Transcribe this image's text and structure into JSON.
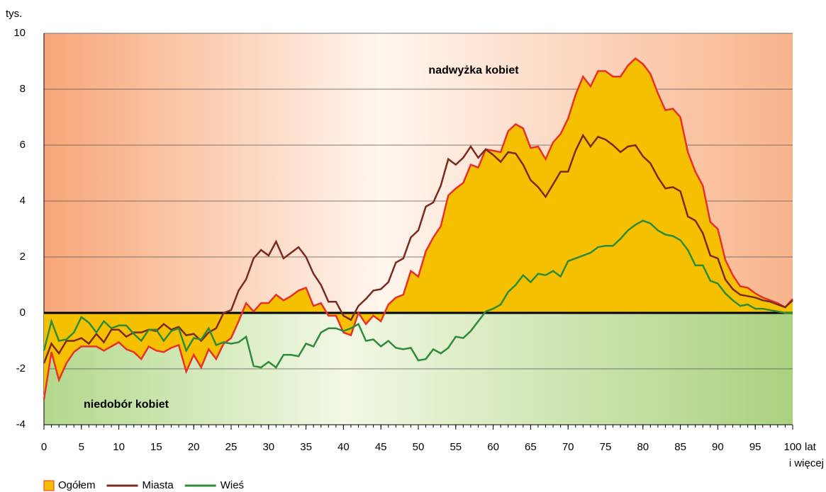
{
  "chart_data": {
    "type": "line",
    "y_label": "tys.",
    "annotations": [
      "nadwyżka kobiet",
      "niedobór kobiet"
    ],
    "x_unit": "lat",
    "x_unit_note": "i więcej",
    "x": [
      0,
      1,
      2,
      3,
      4,
      5,
      6,
      7,
      8,
      9,
      10,
      11,
      12,
      13,
      14,
      15,
      16,
      17,
      18,
      19,
      20,
      21,
      22,
      23,
      24,
      25,
      26,
      27,
      28,
      29,
      30,
      31,
      32,
      33,
      34,
      35,
      36,
      37,
      38,
      39,
      40,
      41,
      42,
      43,
      44,
      45,
      46,
      47,
      48,
      49,
      50,
      51,
      52,
      53,
      54,
      55,
      56,
      57,
      58,
      59,
      60,
      61,
      62,
      63,
      64,
      65,
      66,
      67,
      68,
      69,
      70,
      71,
      72,
      73,
      74,
      75,
      76,
      77,
      78,
      79,
      80,
      81,
      82,
      83,
      84,
      85,
      86,
      87,
      88,
      89,
      90,
      91,
      92,
      93,
      94,
      95,
      96,
      97,
      98,
      99,
      100
    ],
    "series": [
      {
        "name": "Ogółem",
        "color": "#e8312a",
        "fill": "#f5c000",
        "values": [
          -3.1,
          -1.4,
          -2.4,
          -1.8,
          -1.4,
          -1.2,
          -1.2,
          -1.2,
          -1.35,
          -1.2,
          -1.05,
          -1.3,
          -1.4,
          -1.65,
          -1.2,
          -1.35,
          -1.4,
          -1.25,
          -1.15,
          -2.1,
          -1.5,
          -1.95,
          -1.3,
          -1.65,
          -1.1,
          -0.9,
          -0.3,
          0.35,
          0.05,
          0.35,
          0.35,
          0.65,
          0.45,
          0.6,
          0.8,
          0.9,
          0.25,
          0.35,
          -0.1,
          -0.1,
          -0.7,
          -0.8,
          0.0,
          -0.4,
          -0.1,
          -0.3,
          0.3,
          0.55,
          0.65,
          1.5,
          1.3,
          2.2,
          2.7,
          3.1,
          4.2,
          4.45,
          4.65,
          5.3,
          5.2,
          5.85,
          5.8,
          5.75,
          6.5,
          6.75,
          6.6,
          5.9,
          5.95,
          5.5,
          6.1,
          6.4,
          6.95,
          7.8,
          8.45,
          8.1,
          8.65,
          8.65,
          8.45,
          8.45,
          8.85,
          9.1,
          8.9,
          8.55,
          7.85,
          7.25,
          7.3,
          7.0,
          5.75,
          5.05,
          4.55,
          3.25,
          3.0,
          1.9,
          1.35,
          0.95,
          0.9,
          0.7,
          0.55,
          0.45,
          0.35,
          0.2,
          0.5
        ]
      },
      {
        "name": "Miasta",
        "color": "#7b2a20",
        "values": [
          -1.8,
          -1.1,
          -1.45,
          -1.0,
          -1.0,
          -0.9,
          -1.1,
          -0.75,
          -1.05,
          -0.6,
          -0.6,
          -0.85,
          -0.7,
          -0.7,
          -0.6,
          -0.65,
          -0.4,
          -0.6,
          -0.5,
          -0.8,
          -0.75,
          -1.0,
          -0.7,
          -0.55,
          0.0,
          0.1,
          0.8,
          1.2,
          1.95,
          2.25,
          2.05,
          2.55,
          1.95,
          2.15,
          2.35,
          2.0,
          1.4,
          1.0,
          0.4,
          0.4,
          -0.1,
          -0.25,
          0.25,
          0.5,
          0.8,
          0.85,
          1.1,
          1.8,
          1.95,
          2.7,
          2.95,
          3.8,
          3.95,
          4.55,
          5.5,
          5.3,
          5.55,
          5.95,
          5.55,
          5.85,
          5.65,
          5.4,
          5.75,
          5.7,
          5.3,
          4.75,
          4.5,
          4.15,
          4.6,
          5.05,
          5.05,
          5.8,
          6.35,
          5.95,
          6.3,
          6.2,
          6.0,
          5.75,
          5.95,
          6.0,
          5.6,
          5.35,
          4.85,
          4.45,
          4.5,
          4.35,
          3.45,
          3.3,
          2.85,
          2.05,
          1.95,
          1.2,
          0.85,
          0.65,
          0.6,
          0.55,
          0.45,
          0.4,
          0.3,
          0.2,
          0.45
        ]
      },
      {
        "name": "Wieś",
        "color": "#2e8b3a",
        "values": [
          -1.35,
          -0.3,
          -1.0,
          -0.95,
          -0.7,
          -0.15,
          -0.35,
          -0.7,
          -0.3,
          -0.55,
          -0.45,
          -0.45,
          -0.75,
          -1.0,
          -0.6,
          -0.6,
          -1.0,
          -0.65,
          -0.55,
          -1.35,
          -0.9,
          -0.95,
          -0.55,
          -1.15,
          -1.05,
          -1.1,
          -1.05,
          -0.85,
          -1.9,
          -1.95,
          -1.75,
          -1.95,
          -1.5,
          -1.5,
          -1.55,
          -1.1,
          -1.2,
          -0.7,
          -0.55,
          -0.55,
          -0.65,
          -0.55,
          -0.4,
          -1.0,
          -0.95,
          -1.2,
          -1.0,
          -1.25,
          -1.3,
          -1.25,
          -1.7,
          -1.65,
          -1.3,
          -1.45,
          -1.25,
          -0.85,
          -0.9,
          -0.65,
          -0.3,
          0.05,
          0.15,
          0.3,
          0.75,
          1.0,
          1.35,
          1.1,
          1.4,
          1.35,
          1.5,
          1.3,
          1.85,
          1.95,
          2.05,
          2.15,
          2.35,
          2.4,
          2.4,
          2.65,
          2.95,
          3.15,
          3.3,
          3.2,
          2.95,
          2.8,
          2.75,
          2.6,
          2.25,
          1.7,
          1.7,
          1.15,
          1.05,
          0.7,
          0.45,
          0.25,
          0.3,
          0.15,
          0.15,
          0.1,
          0.05,
          0.0,
          0.0
        ]
      }
    ],
    "xlim": [
      0,
      100
    ],
    "xticks": [
      0,
      5,
      10,
      15,
      20,
      25,
      30,
      35,
      40,
      45,
      50,
      55,
      60,
      65,
      70,
      75,
      80,
      85,
      90,
      95,
      100
    ],
    "ylim": [
      -4,
      10
    ],
    "yticks": [
      -4,
      -2,
      0,
      2,
      4,
      6,
      8,
      10
    ],
    "grid": true,
    "legend": "bottom-left"
  }
}
